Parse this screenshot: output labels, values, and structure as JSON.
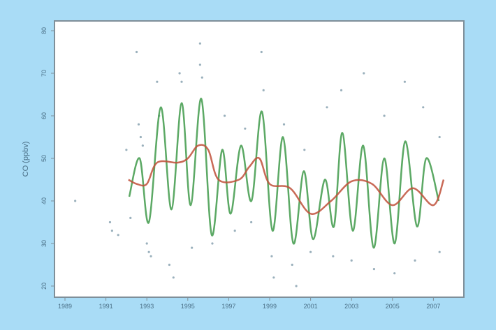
{
  "chart_data": {
    "type": "line",
    "title": "",
    "xlabel": "",
    "ylabel": "CO (ppbv)",
    "xlim": [
      1988.5,
      2008.2
    ],
    "ylim": [
      19,
      82
    ],
    "xticks": [
      1989,
      1991,
      1993,
      1995,
      1997,
      1999,
      2001,
      2003,
      2005,
      2007
    ],
    "yticks": [
      20,
      30,
      40,
      50,
      60,
      70,
      80
    ],
    "grid": false,
    "colors": {
      "background": "#a9dcf6",
      "plot": "#ffffff",
      "frame": "#7f8f99",
      "seasonal": "#3f9a4a",
      "trend": "#c0503a",
      "points": "#6f8fa0"
    },
    "series": [
      {
        "role": "seasonal fit",
        "points": [
          [
            1992.14,
            41
          ],
          [
            1992.65,
            50
          ],
          [
            1993.1,
            35
          ],
          [
            1993.68,
            62
          ],
          [
            1994.2,
            38
          ],
          [
            1994.7,
            63
          ],
          [
            1995.14,
            39
          ],
          [
            1995.66,
            64
          ],
          [
            1996.17,
            32
          ],
          [
            1996.68,
            52
          ],
          [
            1997.09,
            37
          ],
          [
            1997.6,
            53
          ],
          [
            1998.11,
            40
          ],
          [
            1998.62,
            61
          ],
          [
            1999.14,
            33
          ],
          [
            1999.65,
            55
          ],
          [
            2000.16,
            30
          ],
          [
            2000.67,
            47
          ],
          [
            2001.12,
            31
          ],
          [
            2001.7,
            45
          ],
          [
            2002.14,
            34
          ],
          [
            2002.55,
            56
          ],
          [
            2003.06,
            33
          ],
          [
            2003.57,
            53
          ],
          [
            2004.08,
            29
          ],
          [
            2004.6,
            50
          ],
          [
            2005.11,
            30
          ],
          [
            2005.62,
            54
          ],
          [
            2006.2,
            34
          ],
          [
            2006.65,
            50
          ],
          [
            2007.26,
            40
          ]
        ]
      },
      {
        "role": "trend",
        "points": [
          [
            1992.1,
            45
          ],
          [
            1992.5,
            44
          ],
          [
            1993,
            44
          ],
          [
            1993.5,
            49
          ],
          [
            1994.5,
            49
          ],
          [
            1995,
            50
          ],
          [
            1995.5,
            53
          ],
          [
            1996,
            52
          ],
          [
            1996.5,
            45
          ],
          [
            1997.5,
            45
          ],
          [
            1998,
            48
          ],
          [
            1998.5,
            50
          ],
          [
            1999,
            44
          ],
          [
            2000,
            43
          ],
          [
            2001,
            37
          ],
          [
            2002,
            40
          ],
          [
            2003,
            44.6
          ],
          [
            2004,
            44
          ],
          [
            2005,
            39
          ],
          [
            2006,
            43
          ],
          [
            2007,
            39
          ],
          [
            2007.5,
            45
          ]
        ]
      },
      {
        "role": "observations",
        "points": [
          [
            1989.5,
            40
          ],
          [
            1991.2,
            35
          ],
          [
            1991.3,
            33
          ],
          [
            1991.6,
            32
          ],
          [
            1992,
            52
          ],
          [
            1992.2,
            36
          ],
          [
            1992.5,
            75
          ],
          [
            1992.6,
            58
          ],
          [
            1992.7,
            55
          ],
          [
            1992.8,
            53
          ],
          [
            1993,
            30
          ],
          [
            1993.1,
            28
          ],
          [
            1993.2,
            27
          ],
          [
            1993.5,
            68
          ],
          [
            1993.6,
            60
          ],
          [
            1994.1,
            25
          ],
          [
            1994.3,
            22
          ],
          [
            1994.6,
            70
          ],
          [
            1994.7,
            68
          ],
          [
            1995.2,
            29
          ],
          [
            1995.6,
            77
          ],
          [
            1995.6,
            72
          ],
          [
            1995.7,
            69
          ],
          [
            1996.2,
            30
          ],
          [
            1996.8,
            60
          ],
          [
            1997.3,
            33
          ],
          [
            1997.8,
            57
          ],
          [
            1998.1,
            35
          ],
          [
            1998.6,
            75
          ],
          [
            1998.7,
            66
          ],
          [
            1999.1,
            27
          ],
          [
            1999.2,
            22
          ],
          [
            1999.7,
            58
          ],
          [
            2000.1,
            25
          ],
          [
            2000.3,
            20
          ],
          [
            2000.7,
            52
          ],
          [
            2001,
            28
          ],
          [
            2001.8,
            62
          ],
          [
            2002.1,
            27
          ],
          [
            2002.5,
            66
          ],
          [
            2003,
            26
          ],
          [
            2003.6,
            70
          ],
          [
            2004.1,
            24
          ],
          [
            2004.6,
            60
          ],
          [
            2005.1,
            23
          ],
          [
            2005.6,
            68
          ],
          [
            2006.1,
            26
          ],
          [
            2006.5,
            62
          ],
          [
            2007.3,
            28
          ],
          [
            2007.3,
            55
          ]
        ]
      }
    ]
  }
}
